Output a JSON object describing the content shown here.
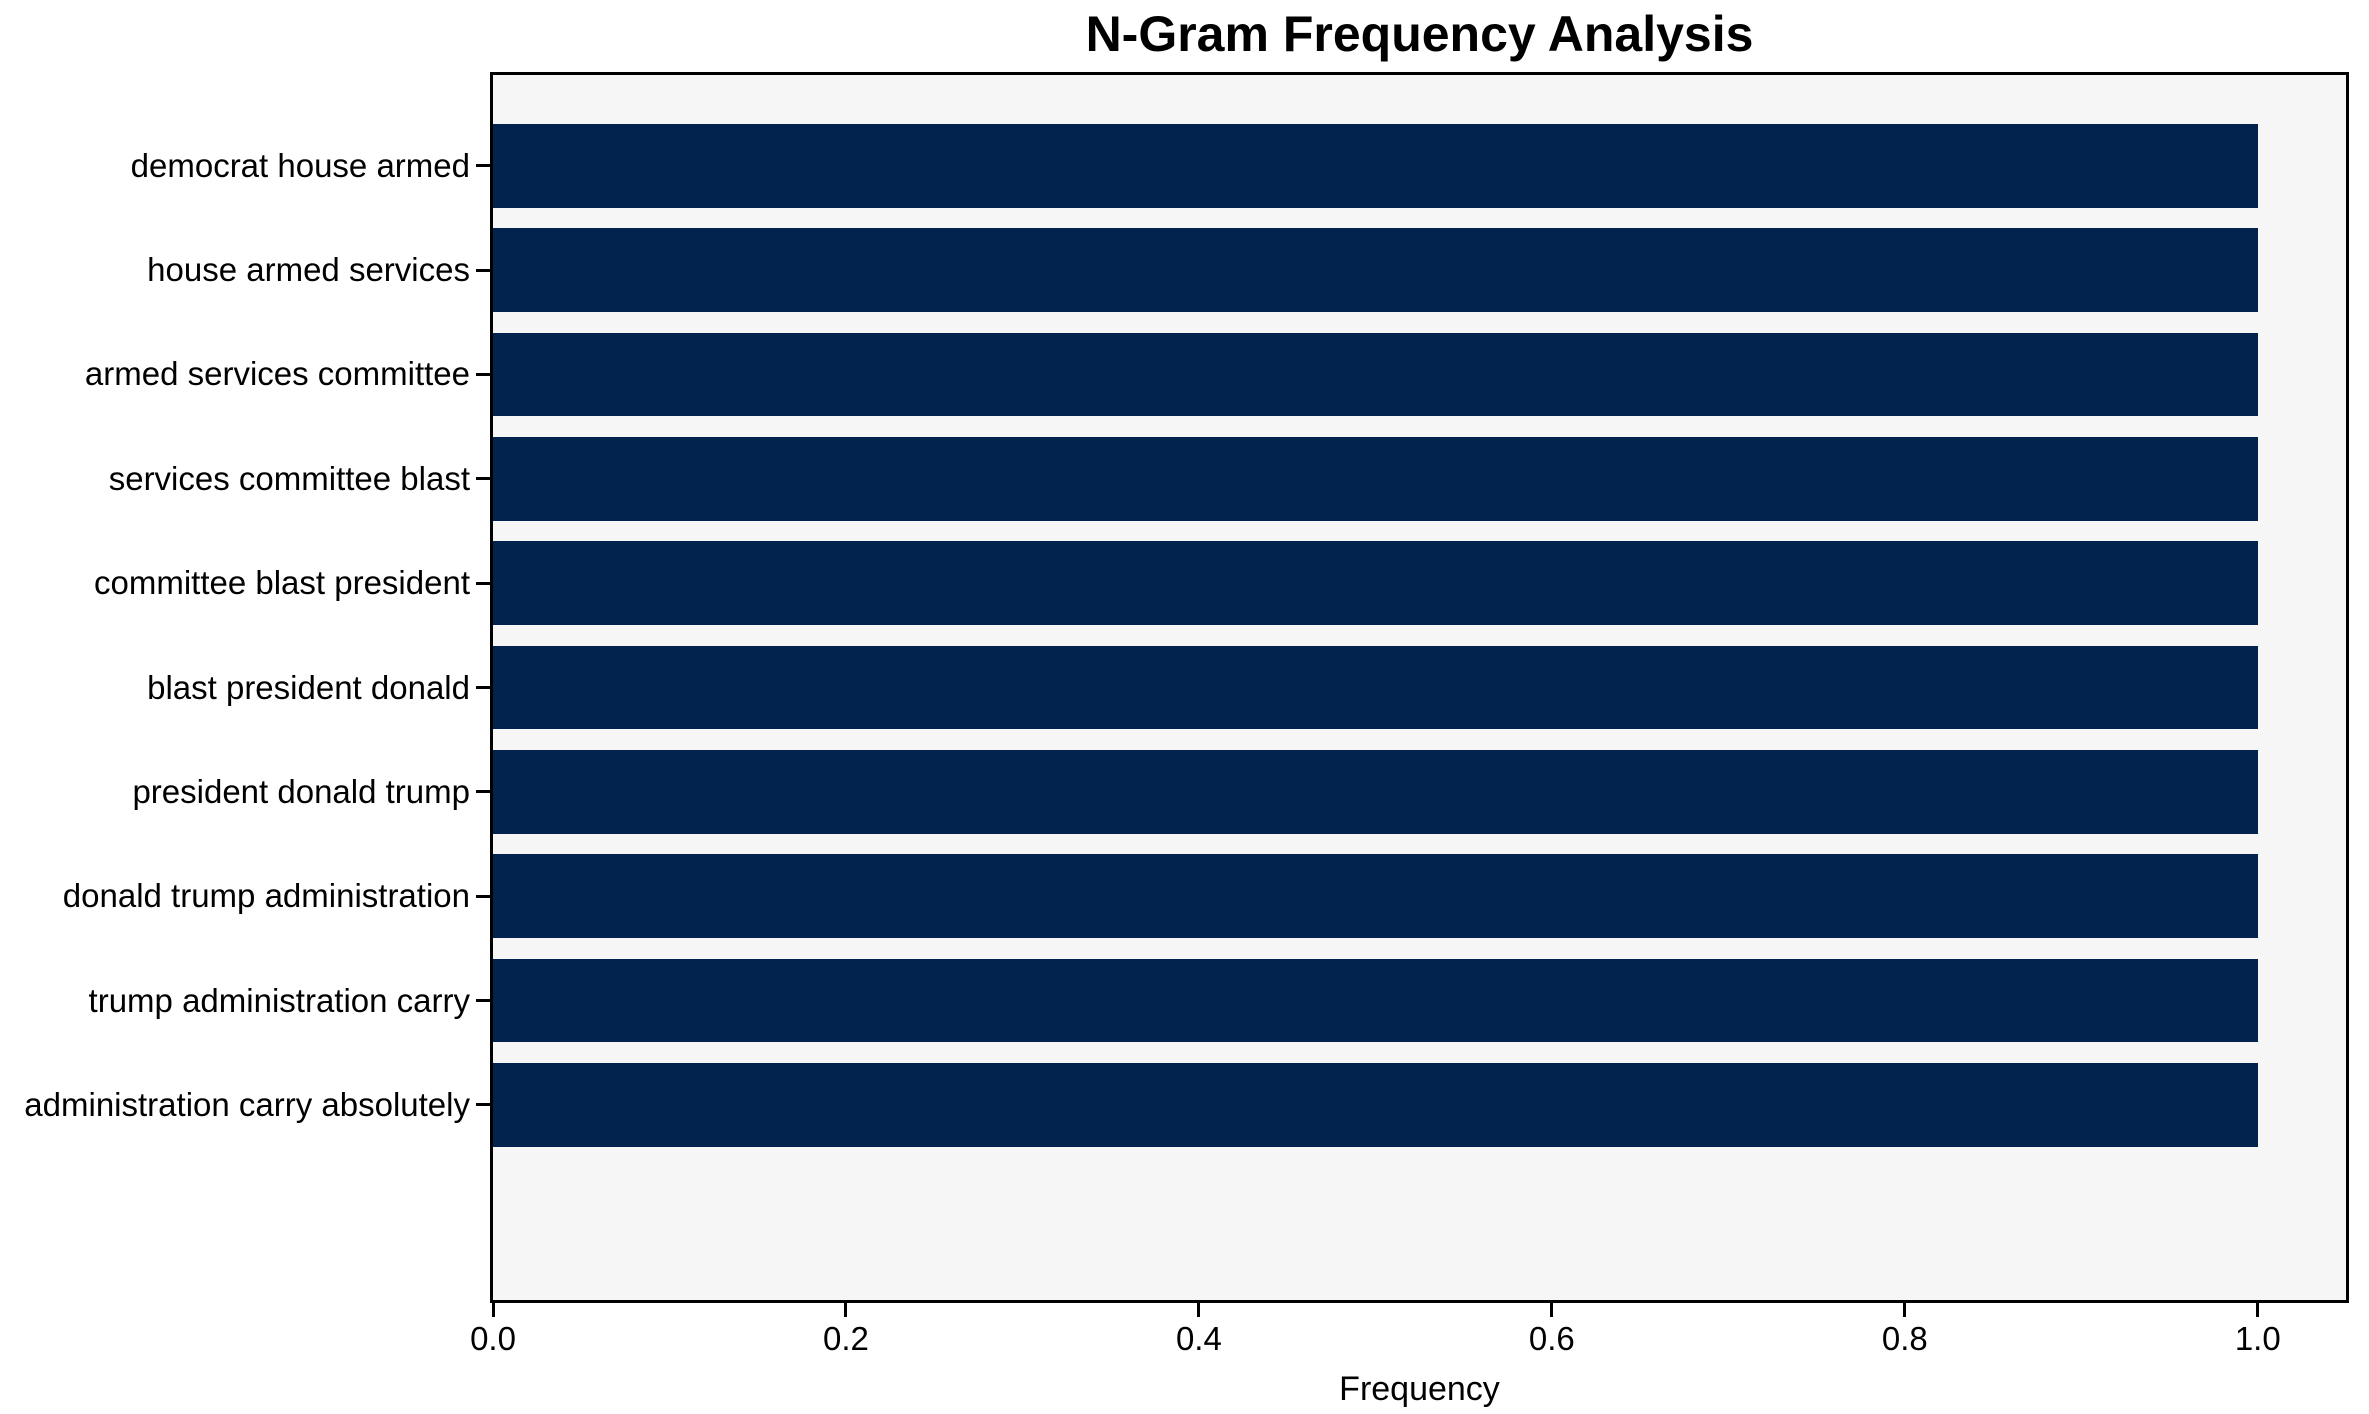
{
  "chart_data": {
    "type": "bar",
    "orientation": "horizontal",
    "title": "N-Gram Frequency Analysis",
    "xlabel": "Frequency",
    "ylabel": "",
    "categories": [
      "democrat house armed",
      "house armed services",
      "armed services committee",
      "services committee blast",
      "committee blast president",
      "blast president donald",
      "president donald trump",
      "donald trump administration",
      "trump administration carry",
      "administration carry absolutely"
    ],
    "values": [
      1.0,
      1.0,
      1.0,
      1.0,
      1.0,
      1.0,
      1.0,
      1.0,
      1.0,
      1.0
    ],
    "xlim": [
      0,
      1.05
    ],
    "xticks": [
      0.0,
      0.2,
      0.4,
      0.6,
      0.8,
      1.0
    ],
    "grid": false,
    "legend": false,
    "bar_height_fraction": 0.8,
    "colors": {
      "bar": "#02234e",
      "plot_background": "#f6f6f7",
      "figure_background": "#ffffff",
      "spine": "#000000",
      "text": "#000000"
    }
  }
}
